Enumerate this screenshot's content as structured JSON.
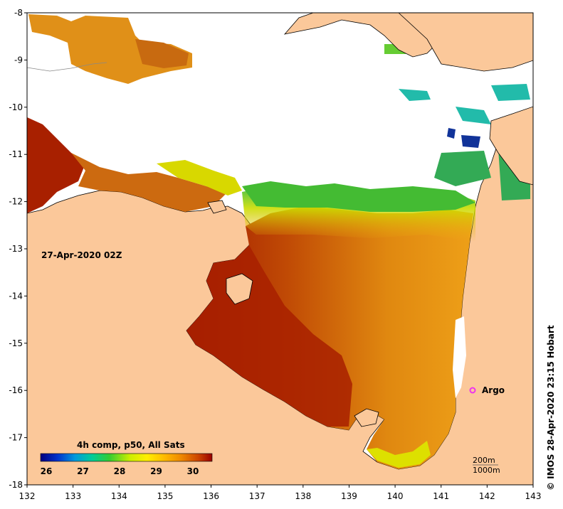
{
  "map": {
    "timestamp_label": "27-Apr-2020 02Z",
    "composite_label": "4h comp, p50, All Sats",
    "credit_label": "© IMOS 28-Apr-2020 23:15 Hobart",
    "argo_label": "Argo",
    "contour_labels": [
      "200m",
      "1000m"
    ],
    "lon_ticks": [
      "132",
      "133",
      "134",
      "135",
      "136",
      "137",
      "138",
      "139",
      "140",
      "141",
      "142",
      "143"
    ],
    "lat_ticks": [
      "-8",
      "-9",
      "-10",
      "-11",
      "-12",
      "-13",
      "-14",
      "-15",
      "-16",
      "-17",
      "-18"
    ],
    "colorbar": {
      "ticks": [
        "26",
        "27",
        "28",
        "29",
        "30"
      ],
      "colors": [
        "#000080",
        "#0033cc",
        "#0099dd",
        "#00cc99",
        "#33cc33",
        "#ccee00",
        "#ffee00",
        "#ffbb00",
        "#ee8800",
        "#cc4400",
        "#990000"
      ]
    },
    "colors": {
      "land": "#fbc89a",
      "cloud": "#ffffff",
      "sst_warm": "#e08a10",
      "sst_hot": "#a82000",
      "sst_cool": "#44bb44",
      "sst_yellow": "#e8e000",
      "argo": "#ee33ee"
    }
  }
}
